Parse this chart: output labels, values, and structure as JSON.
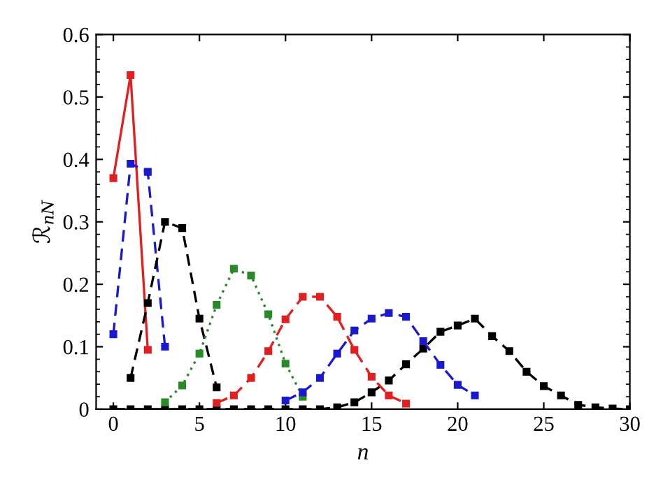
{
  "chart_data": {
    "type": "line",
    "xlabel": "n",
    "ylabel": "ℛ$_{nN}$",
    "x": [
      0,
      1,
      2,
      3,
      4,
      5,
      6,
      7,
      8,
      9,
      10,
      11,
      12,
      13,
      14,
      15,
      16,
      17,
      18,
      19,
      20,
      21,
      22,
      23,
      24,
      25,
      26,
      27,
      28,
      29,
      30
    ],
    "xlim": [
      -1,
      30
    ],
    "xticks": [
      0,
      5,
      10,
      15,
      20,
      25,
      30
    ],
    "ylim": [
      0,
      0.6
    ],
    "yticks": [
      0,
      0.1,
      0.2,
      0.3,
      0.4,
      0.5,
      0.6
    ],
    "grid": false,
    "marker": "square",
    "series": [
      {
        "color": "#000000",
        "line_style": "dashed",
        "values": [
          0,
          0,
          0,
          0,
          0,
          0,
          0,
          0,
          0,
          0,
          0,
          0,
          0,
          0.003,
          0.011,
          0.027,
          0.046,
          0.072,
          0.097,
          0.124,
          0.134,
          0.145,
          0.117,
          0.093,
          0.06,
          0.037,
          0.022,
          0.007,
          0.003,
          0.001,
          0
        ]
      },
      {
        "color": "#e02020",
        "line_style": "solid",
        "x": [
          0,
          1,
          2
        ],
        "values": [
          0.37,
          0.535,
          0.095
        ]
      },
      {
        "color": "#1a1acc",
        "line_style": "dashed",
        "x": [
          0,
          1,
          2,
          3
        ],
        "values": [
          0.12,
          0.393,
          0.38,
          0.1
        ]
      },
      {
        "color": "#000000",
        "line_style": "dashed",
        "x": [
          1,
          2,
          3,
          4,
          5,
          6
        ],
        "values": [
          0.05,
          0.17,
          0.3,
          0.29,
          0.145,
          0.035
        ]
      },
      {
        "color": "#2a8a2a",
        "line_style": "dotted",
        "x": [
          3,
          4,
          5,
          6,
          7,
          8,
          9,
          10,
          11
        ],
        "values": [
          0.011,
          0.038,
          0.089,
          0.167,
          0.225,
          0.214,
          0.152,
          0.073,
          0.02
        ]
      },
      {
        "color": "#e02020",
        "line_style": "dashed",
        "x": [
          6,
          7,
          8,
          9,
          10,
          11,
          12,
          13,
          14,
          15,
          16,
          17
        ],
        "values": [
          0.01,
          0.022,
          0.05,
          0.093,
          0.144,
          0.18,
          0.18,
          0.148,
          0.095,
          0.052,
          0.022,
          0.009
        ]
      },
      {
        "color": "#1a1acc",
        "line_style": "dashed",
        "x": [
          10,
          11,
          12,
          13,
          14,
          15,
          16,
          17,
          18,
          19,
          20,
          21
        ],
        "values": [
          0.014,
          0.027,
          0.05,
          0.089,
          0.126,
          0.145,
          0.154,
          0.148,
          0.109,
          0.071,
          0.039,
          0.022
        ]
      }
    ]
  }
}
